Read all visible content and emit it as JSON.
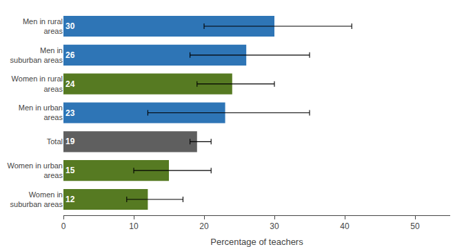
{
  "chart_data": {
    "type": "bar",
    "orientation": "horizontal",
    "categories": [
      "Men in rural\nareas",
      "Men in\nsuburban areas",
      "Women in rural\nareas",
      "Men in urban\nareas",
      "Total",
      "Women in urban\nareas",
      "Women in\nsuburban areas"
    ],
    "values": [
      30,
      26,
      24,
      23,
      19,
      15,
      12
    ],
    "err_low": [
      10,
      8,
      5,
      11,
      1,
      5,
      3
    ],
    "err_high": [
      11,
      9,
      6,
      12,
      2,
      6,
      5
    ],
    "colors": [
      "#2E75B6",
      "#2E75B6",
      "#567A22",
      "#2E75B6",
      "#5F5F5F",
      "#567A22",
      "#567A22"
    ],
    "xlabel": "Percentage of teachers",
    "xlim": [
      0,
      55
    ],
    "xticks": [
      0,
      10,
      20,
      30,
      40,
      50
    ],
    "data_labels": true,
    "grid": false
  }
}
